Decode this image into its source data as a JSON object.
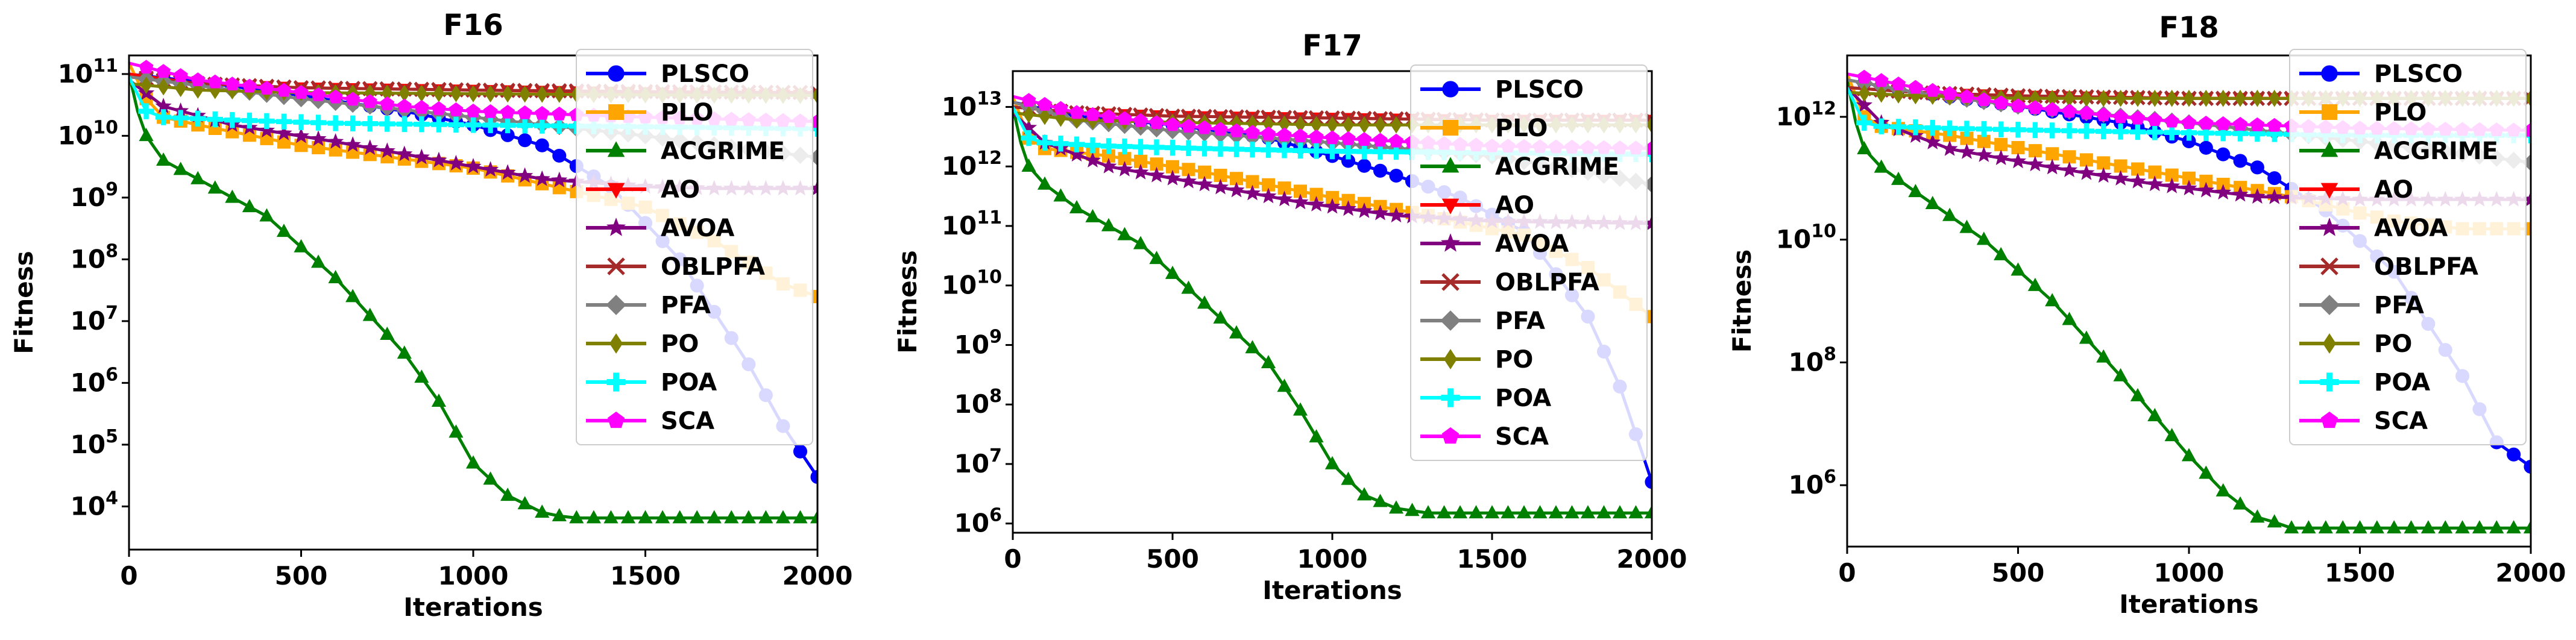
{
  "chart_data": [
    {
      "type": "line",
      "title": "F16",
      "xlabel": "Iterations",
      "ylabel": "Fitness",
      "yscale": "log",
      "xlim": [
        0,
        2000
      ],
      "ylim": [
        2000,
        200000000000
      ],
      "xticks": [
        "0",
        "500",
        "1000",
        "1500",
        "2000"
      ],
      "yticks": [
        {
          "base": "10",
          "exp": "4"
        },
        {
          "base": "10",
          "exp": "5"
        },
        {
          "base": "10",
          "exp": "6"
        },
        {
          "base": "10",
          "exp": "7"
        },
        {
          "base": "10",
          "exp": "8"
        },
        {
          "base": "10",
          "exp": "9"
        },
        {
          "base": "10",
          "exp": "10"
        },
        {
          "base": "10",
          "exp": "11"
        }
      ],
      "grid": false,
      "legend_position": "top-right",
      "series": [
        {
          "name": "PLSCO",
          "x": [
            0,
            200,
            500,
            800,
            1000,
            1200,
            1400,
            1600,
            1800,
            1900,
            2000
          ],
          "y": [
            100000000000,
            75000000000,
            45000000000,
            25000000000,
            15000000000,
            7000000000,
            1500000000,
            100000000,
            2000000,
            200000,
            30000
          ]
        },
        {
          "name": "PLO",
          "x": [
            0,
            50,
            100,
            200,
            500,
            1000,
            1500,
            1700,
            1900,
            2000
          ],
          "y": [
            150000000000,
            40000000000,
            20000000000,
            15000000000,
            7000000000,
            3000000000,
            700000000,
            200000000,
            40000000,
            25000000
          ]
        },
        {
          "name": "ACGRIME",
          "x": [
            0,
            20,
            50,
            100,
            200,
            400,
            600,
            800,
            900,
            1000,
            1100,
            1200,
            1250,
            1300,
            2000
          ],
          "y": [
            100000000000,
            30000000000,
            10000000000,
            4000000000,
            2000000000,
            500000000,
            50000000,
            3000000,
            500000,
            50000,
            15000,
            8000,
            7000,
            6500,
            6500
          ]
        },
        {
          "name": "AO",
          "x": [
            0,
            200,
            500,
            1000,
            1500,
            2000
          ],
          "y": [
            100000000000,
            70000000000,
            60000000000,
            55000000000,
            50000000000,
            45000000000
          ]
        },
        {
          "name": "AVOA",
          "x": [
            0,
            100,
            300,
            600,
            900,
            1200,
            1500,
            1700,
            2000
          ],
          "y": [
            80000000000,
            30000000000,
            15000000000,
            8000000000,
            4000000000,
            2000000000,
            1500000000,
            1400000000,
            1400000000
          ]
        },
        {
          "name": "OBLPFA",
          "x": [
            0,
            200,
            500,
            1000,
            1500,
            2000
          ],
          "y": [
            90000000000,
            70000000000,
            60000000000,
            55000000000,
            52000000000,
            50000000000
          ]
        },
        {
          "name": "PFA",
          "x": [
            0,
            200,
            500,
            1000,
            1500,
            1800,
            2000
          ],
          "y": [
            90000000000,
            65000000000,
            40000000000,
            20000000000,
            10000000000,
            6000000000,
            4500000000
          ]
        },
        {
          "name": "PO",
          "x": [
            0,
            200,
            500,
            1000,
            1500,
            2000
          ],
          "y": [
            70000000000,
            55000000000,
            50000000000,
            48000000000,
            46000000000,
            45000000000
          ]
        },
        {
          "name": "POA",
          "x": [
            0,
            50,
            100,
            300,
            600,
            1000,
            1500,
            2000
          ],
          "y": [
            90000000000,
            25000000000,
            20000000000,
            18000000000,
            16000000000,
            15000000000,
            14000000000,
            13000000000
          ]
        },
        {
          "name": "SCA",
          "x": [
            0,
            200,
            500,
            800,
            1000,
            1500,
            2000
          ],
          "y": [
            150000000000,
            80000000000,
            50000000000,
            30000000000,
            25000000000,
            20000000000,
            17000000000
          ]
        }
      ]
    },
    {
      "type": "line",
      "title": "F17",
      "xlabel": "Iterations",
      "ylabel": "Fitness",
      "yscale": "log",
      "xlim": [
        0,
        2000
      ],
      "ylim": [
        700000,
        40000000000000
      ],
      "xticks": [
        "0",
        "500",
        "1000",
        "1500",
        "2000"
      ],
      "yticks": [
        {
          "base": "10",
          "exp": "6"
        },
        {
          "base": "10",
          "exp": "7"
        },
        {
          "base": "10",
          "exp": "8"
        },
        {
          "base": "10",
          "exp": "9"
        },
        {
          "base": "10",
          "exp": "10"
        },
        {
          "base": "10",
          "exp": "11"
        },
        {
          "base": "10",
          "exp": "12"
        },
        {
          "base": "10",
          "exp": "13"
        }
      ],
      "grid": false,
      "legend_position": "top-right",
      "series": [
        {
          "name": "PLSCO",
          "x": [
            0,
            200,
            500,
            800,
            1000,
            1200,
            1400,
            1600,
            1800,
            1900,
            2000
          ],
          "y": [
            12000000000000,
            7000000000000,
            5000000000000,
            3000000000000,
            1500000000000,
            700000000000,
            300000000000,
            80000000000,
            3000000000,
            200000000,
            5000000
          ]
        },
        {
          "name": "PLO",
          "x": [
            0,
            50,
            100,
            300,
            600,
            1000,
            1300,
            1600,
            1800,
            2000
          ],
          "y": [
            15000000000000,
            3000000000000,
            2000000000000,
            1500000000000,
            800000000000,
            300000000000,
            150000000000,
            70000000000,
            20000000000,
            3000000000
          ]
        },
        {
          "name": "ACGRIME",
          "x": [
            0,
            20,
            50,
            100,
            200,
            400,
            600,
            800,
            900,
            1000,
            1100,
            1200,
            1300,
            2000
          ],
          "y": [
            10000000000000,
            3000000000000,
            1000000000000,
            500000000000,
            200000000000,
            50000000000,
            5000000000,
            500000000,
            80000000,
            10000000,
            3000000,
            1800000,
            1500000,
            1500000
          ]
        },
        {
          "name": "AO",
          "x": [
            0,
            200,
            500,
            1000,
            1500,
            2000
          ],
          "y": [
            10000000000000,
            8000000000000,
            7000000000000,
            6500000000000,
            6000000000000,
            6000000000000
          ]
        },
        {
          "name": "AVOA",
          "x": [
            0,
            100,
            300,
            600,
            900,
            1200,
            1500,
            2000
          ],
          "y": [
            8000000000000,
            2500000000000,
            1000000000000,
            500000000000,
            250000000000,
            150000000000,
            120000000000,
            110000000000
          ]
        },
        {
          "name": "OBLPFA",
          "x": [
            0,
            200,
            500,
            1000,
            1500,
            2000
          ],
          "y": [
            10000000000000,
            8000000000000,
            7000000000000,
            6500000000000,
            6000000000000,
            6000000000000
          ]
        },
        {
          "name": "PFA",
          "x": [
            0,
            200,
            500,
            1000,
            1500,
            1800,
            2000
          ],
          "y": [
            12000000000000,
            6000000000000,
            4000000000000,
            2500000000000,
            1500000000000,
            800000000000,
            500000000000
          ]
        },
        {
          "name": "PO",
          "x": [
            0,
            200,
            500,
            1000,
            1500,
            2000
          ],
          "y": [
            8000000000000,
            6000000000000,
            5500000000000,
            5000000000000,
            5000000000000,
            5000000000000
          ]
        },
        {
          "name": "POA",
          "x": [
            0,
            50,
            100,
            300,
            600,
            1000,
            1500,
            2000
          ],
          "y": [
            10000000000000,
            3000000000000,
            2500000000000,
            2200000000000,
            2000000000000,
            1800000000000,
            1700000000000,
            1600000000000
          ]
        },
        {
          "name": "SCA",
          "x": [
            0,
            200,
            500,
            800,
            1000,
            1500,
            2000
          ],
          "y": [
            15000000000000,
            8000000000000,
            5000000000000,
            3500000000000,
            3000000000000,
            2200000000000,
            2000000000000
          ]
        }
      ]
    },
    {
      "type": "line",
      "title": "F18",
      "xlabel": "Iterations",
      "ylabel": "Fitness",
      "yscale": "log",
      "xlim": [
        0,
        2000
      ],
      "ylim": [
        100000,
        10000000000000
      ],
      "xticks": [
        "0",
        "500",
        "1000",
        "1500",
        "2000"
      ],
      "yticks": [
        {
          "base": "10",
          "exp": "6"
        },
        {
          "base": "10",
          "exp": "8"
        },
        {
          "base": "10",
          "exp": "10"
        },
        {
          "base": "10",
          "exp": "12"
        }
      ],
      "grid": false,
      "legend_position": "top-right",
      "series": [
        {
          "name": "PLSCO",
          "x": [
            0,
            200,
            500,
            800,
            1000,
            1200,
            1400,
            1600,
            1800,
            1900,
            2000
          ],
          "y": [
            4000000000000,
            2500000000000,
            1500000000000,
            800000000000,
            400000000000,
            150000000000,
            30000000000,
            3000000000,
            60000000,
            5000000,
            2000000
          ]
        },
        {
          "name": "PLO",
          "x": [
            0,
            50,
            100,
            300,
            600,
            1000,
            1300,
            1600,
            1800,
            2000
          ],
          "y": [
            5000000000000,
            1000000000000,
            700000000000,
            500000000000,
            250000000000,
            100000000000,
            50000000000,
            20000000000,
            15000000000,
            15000000000
          ]
        },
        {
          "name": "ACGRIME",
          "x": [
            0,
            20,
            50,
            100,
            200,
            400,
            600,
            800,
            1000,
            1100,
            1200,
            1250,
            1300,
            2000
          ],
          "y": [
            4000000000000,
            1000000000000,
            300000000000,
            150000000000,
            60000000000,
            10000000000,
            1000000000,
            60000000,
            3000000,
            800000,
            300000,
            250000,
            200000,
            200000
          ]
        },
        {
          "name": "AO",
          "x": [
            0,
            200,
            500,
            1000,
            1500,
            2000
          ],
          "y": [
            3000000000000,
            2500000000000,
            2200000000000,
            2000000000000,
            2000000000000,
            2000000000000
          ]
        },
        {
          "name": "AVOA",
          "x": [
            0,
            100,
            300,
            600,
            900,
            1200,
            1500,
            2000
          ],
          "y": [
            3000000000000,
            800000000000,
            300000000000,
            150000000000,
            80000000000,
            50000000000,
            45000000000,
            45000000000
          ]
        },
        {
          "name": "OBLPFA",
          "x": [
            0,
            200,
            500,
            1000,
            1500,
            2000
          ],
          "y": [
            3000000000000,
            2500000000000,
            2200000000000,
            2000000000000,
            2000000000000,
            2000000000000
          ]
        },
        {
          "name": "PFA",
          "x": [
            0,
            200,
            500,
            1000,
            1500,
            1800,
            2000
          ],
          "y": [
            4000000000000,
            2500000000000,
            1500000000000,
            800000000000,
            400000000000,
            250000000000,
            180000000000
          ]
        },
        {
          "name": "PO",
          "x": [
            0,
            200,
            500,
            1000,
            1500,
            2000
          ],
          "y": [
            2500000000000,
            2200000000000,
            2000000000000,
            2000000000000,
            2000000000000,
            2000000000000
          ]
        },
        {
          "name": "POA",
          "x": [
            0,
            50,
            100,
            300,
            600,
            1000,
            1500,
            2000
          ],
          "y": [
            3000000000000,
            800000000000,
            700000000000,
            650000000000,
            600000000000,
            550000000000,
            500000000000,
            500000000000
          ]
        },
        {
          "name": "SCA",
          "x": [
            0,
            200,
            500,
            800,
            1000,
            1500,
            2000
          ],
          "y": [
            5000000000000,
            3000000000000,
            1500000000000,
            1000000000000,
            800000000000,
            650000000000,
            600000000000
          ]
        }
      ]
    }
  ],
  "colors": {
    "PLSCO": "#0000ff",
    "PLO": "#ffa500",
    "ACGRIME": "#008000",
    "AO": "#ff0000",
    "AVOA": "#800080",
    "OBLPFA": "#a52a2a",
    "PFA": "#808080",
    "PO": "#808000",
    "POA": "#00ffff",
    "SCA": "#ff00ff"
  },
  "markers": {
    "PLSCO": "circle-marker",
    "PLO": "square-marker",
    "ACGRIME": "triangle-up-marker",
    "AO": "triangle-down-marker",
    "AVOA": "star-marker",
    "OBLPFA": "x-marker",
    "PFA": "diamond-marker",
    "PO": "thin-diamond-marker",
    "POA": "plus-marker",
    "SCA": "pentagon-marker"
  }
}
